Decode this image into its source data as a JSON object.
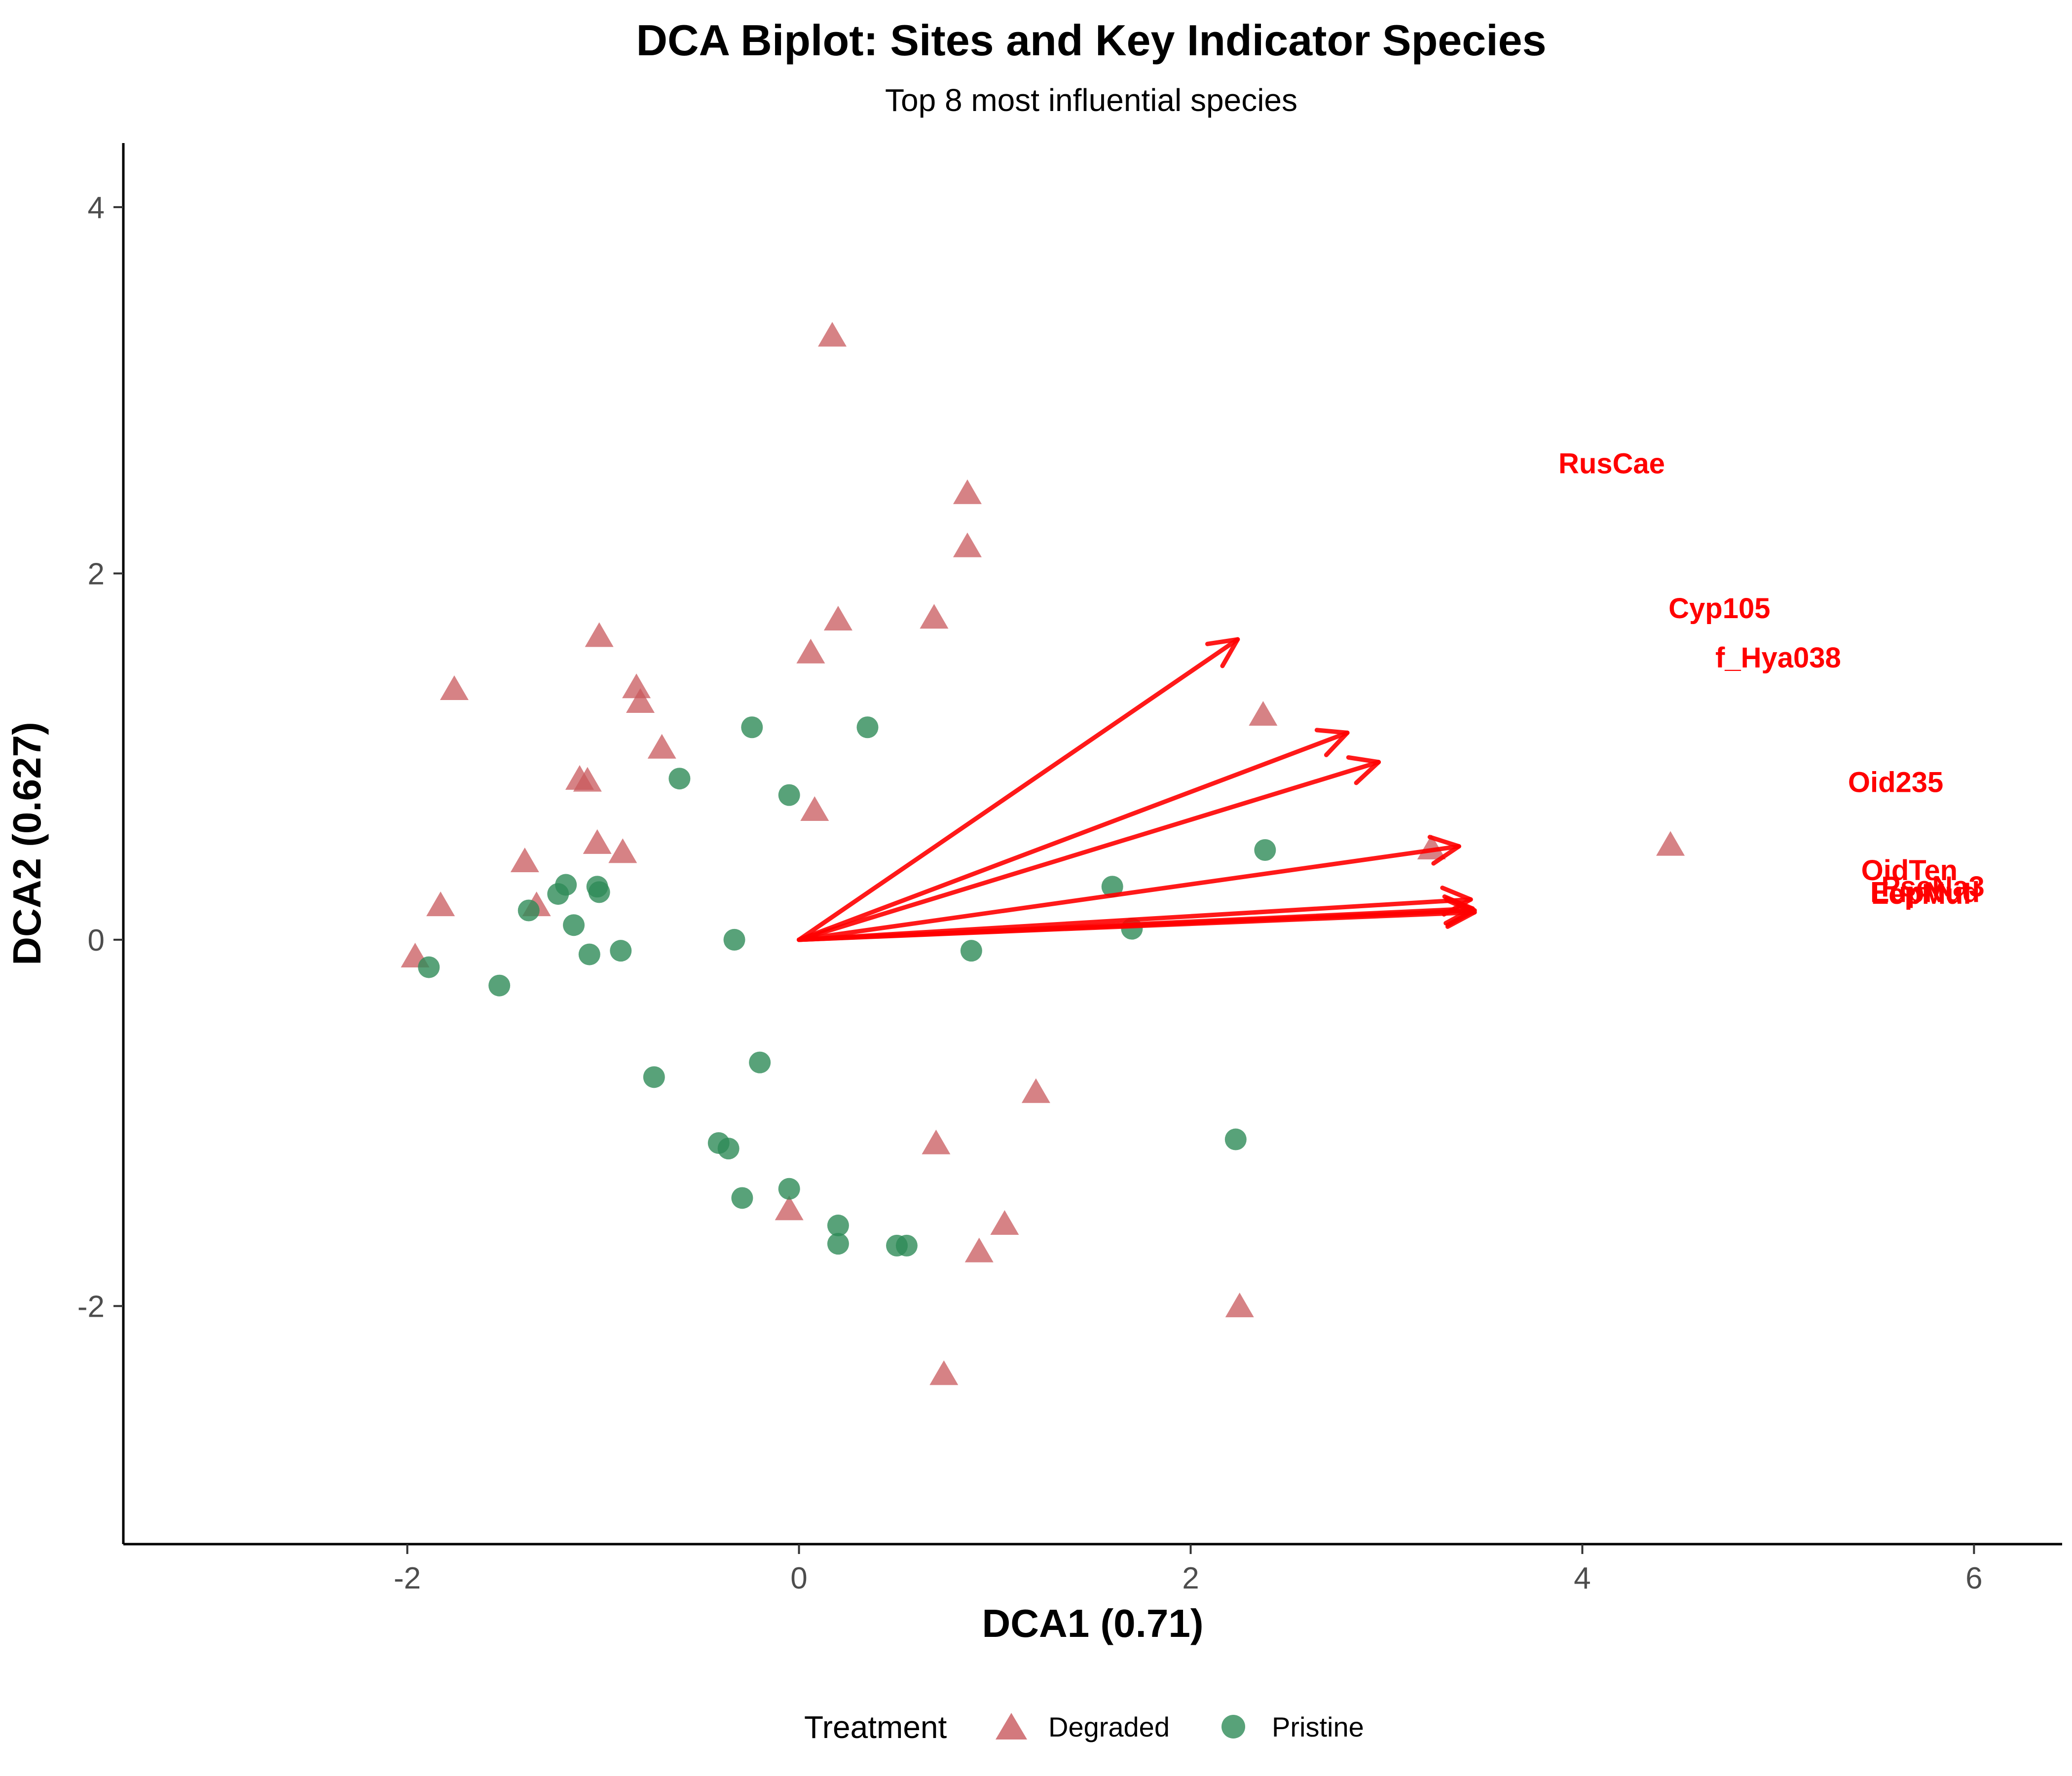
{
  "chart_data": {
    "type": "scatter",
    "title": "DCA Biplot: Sites and Key Indicator Species",
    "subtitle": "Top 8 most influential species",
    "xlabel": "DCA1 (0.71)",
    "ylabel": "DCA2 (0.627)",
    "xlim": [
      -3.45,
      6.45
    ],
    "ylim": [
      -3.3,
      4.35
    ],
    "x_ticks": [
      -2,
      0,
      2,
      4,
      6
    ],
    "y_ticks": [
      -2,
      0,
      2,
      4
    ],
    "x_tick_labels": [
      "-2",
      "0",
      "2",
      "4",
      "6"
    ],
    "y_tick_labels": [
      "-2",
      "0",
      "2",
      "4"
    ],
    "grid": false,
    "legend": {
      "title": "Treatment",
      "placement": "bottom"
    },
    "series": [
      {
        "name": "Degraded",
        "marker": "triangle",
        "color": "#c8585c",
        "points": [
          [
            0.17,
            3.29
          ],
          [
            0.86,
            2.43
          ],
          [
            0.86,
            2.14
          ],
          [
            0.2,
            1.74
          ],
          [
            0.69,
            1.75
          ],
          [
            0.06,
            1.56
          ],
          [
            -1.02,
            1.65
          ],
          [
            -1.76,
            1.36
          ],
          [
            -0.83,
            1.37
          ],
          [
            -0.81,
            1.29
          ],
          [
            -0.7,
            1.04
          ],
          [
            -1.12,
            0.87
          ],
          [
            -1.08,
            0.86
          ],
          [
            0.08,
            0.7
          ],
          [
            -1.03,
            0.52
          ],
          [
            -0.9,
            0.47
          ],
          [
            -1.4,
            0.42
          ],
          [
            -1.83,
            0.18
          ],
          [
            -1.34,
            0.18
          ],
          [
            -1.96,
            -0.1
          ],
          [
            2.37,
            1.22
          ],
          [
            3.23,
            0.49
          ],
          [
            4.45,
            0.51
          ],
          [
            1.21,
            -0.84
          ],
          [
            0.7,
            -1.12
          ],
          [
            -0.05,
            -1.48
          ],
          [
            1.05,
            -1.56
          ],
          [
            0.92,
            -1.71
          ],
          [
            2.25,
            -2.01
          ],
          [
            0.74,
            -2.38
          ]
        ]
      },
      {
        "name": "Pristine",
        "marker": "circle",
        "color": "#2e8b57",
        "points": [
          [
            -0.24,
            1.16
          ],
          [
            0.35,
            1.16
          ],
          [
            -0.61,
            0.88
          ],
          [
            -0.05,
            0.79
          ],
          [
            2.38,
            0.49
          ],
          [
            1.6,
            0.29
          ],
          [
            1.7,
            0.06
          ],
          [
            0.88,
            -0.06
          ],
          [
            -0.33,
            0.0
          ],
          [
            -1.19,
            0.3
          ],
          [
            -1.03,
            0.29
          ],
          [
            -1.23,
            0.25
          ],
          [
            -1.02,
            0.26
          ],
          [
            -1.38,
            0.16
          ],
          [
            -1.15,
            0.08
          ],
          [
            -1.07,
            -0.08
          ],
          [
            -0.91,
            -0.06
          ],
          [
            -1.89,
            -0.15
          ],
          [
            -1.53,
            -0.25
          ],
          [
            -0.74,
            -0.75
          ],
          [
            -0.2,
            -0.67
          ],
          [
            -0.41,
            -1.11
          ],
          [
            -0.36,
            -1.14
          ],
          [
            -0.29,
            -1.41
          ],
          [
            -0.05,
            -1.36
          ],
          [
            0.2,
            -1.56
          ],
          [
            0.2,
            -1.66
          ],
          [
            0.5,
            -1.67
          ],
          [
            0.55,
            -1.67
          ],
          [
            2.23,
            -1.09
          ]
        ]
      }
    ],
    "species_vectors": {
      "color": "#ff0000",
      "items": [
        {
          "name": "RusCae",
          "x": 2.24,
          "y": 1.64,
          "label_x": 4.15,
          "label_y": 2.6
        },
        {
          "name": "Cyp105",
          "x": 2.8,
          "y": 1.13,
          "label_x": 4.7,
          "label_y": 1.81
        },
        {
          "name": "f_Hya038",
          "x": 2.96,
          "y": 0.97,
          "label_x": 5.0,
          "label_y": 1.54
        },
        {
          "name": "Oid235",
          "x": 3.37,
          "y": 0.51,
          "label_x": 5.6,
          "label_y": 0.86
        },
        {
          "name": "OidTen",
          "x": 3.43,
          "y": 0.22,
          "label_x": 5.67,
          "label_y": 0.38
        },
        {
          "name": "PseNa3",
          "x": 3.44,
          "y": 0.17,
          "label_x": 5.79,
          "label_y": 0.29
        },
        {
          "name": "EupNud",
          "x": 3.45,
          "y": 0.15,
          "label_x": 5.75,
          "label_y": 0.26
        },
        {
          "name": "LepMul",
          "x": 3.45,
          "y": 0.16,
          "label_x": 5.73,
          "label_y": 0.25
        }
      ]
    }
  }
}
